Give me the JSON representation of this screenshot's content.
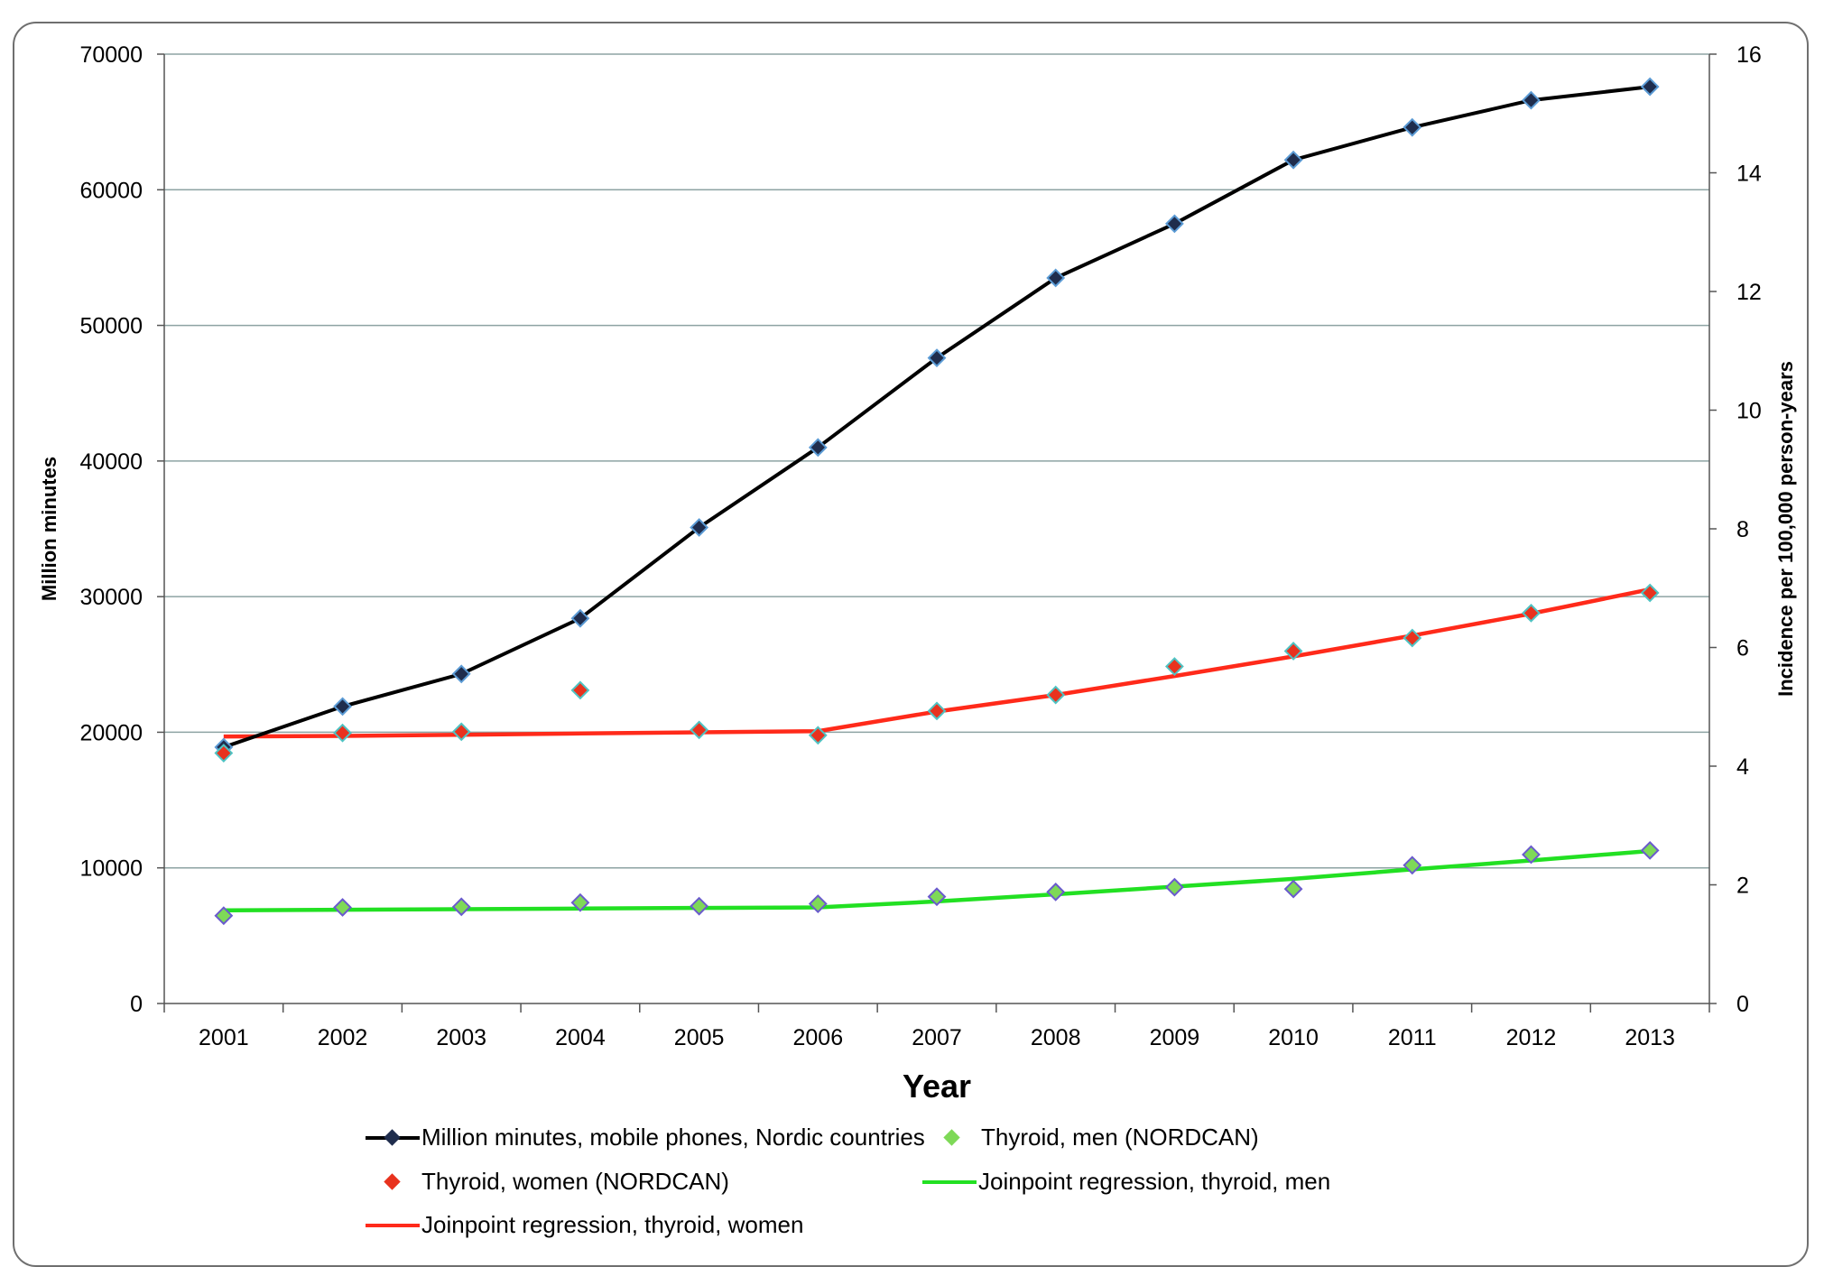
{
  "chart_data": {
    "type": "line",
    "xlabel": "Year",
    "ylabel": "Million minutes",
    "y2label": "Incidence per 100,000 person-years",
    "categories": [
      "2001",
      "2002",
      "2003",
      "2004",
      "2005",
      "2006",
      "2007",
      "2008",
      "2009",
      "2010",
      "2011",
      "2012",
      "2013"
    ],
    "ylim": [
      0,
      70000
    ],
    "y2lim": [
      0,
      16
    ],
    "yticks": [
      "0",
      "10000",
      "20000",
      "30000",
      "40000",
      "50000",
      "60000",
      "70000"
    ],
    "y2ticks": [
      "0",
      "2",
      "4",
      "6",
      "8",
      "10",
      "12",
      "14",
      "16"
    ],
    "grid": true,
    "legend_position": "bottom",
    "series": [
      {
        "name": "Million minutes, mobile phones, Nordic countries",
        "axis": "left",
        "style": "line+marker",
        "color": "#000000",
        "marker_color": "#1f2d4d",
        "values": [
          18900,
          21900,
          24300,
          28400,
          35100,
          41000,
          47600,
          53500,
          57500,
          62200,
          64600,
          66600,
          67600
        ]
      },
      {
        "name": "Thyroid, men (NORDCAN)",
        "axis": "right",
        "style": "marker",
        "color": "#7ed957",
        "values": [
          1.48,
          1.62,
          1.63,
          1.7,
          1.64,
          1.68,
          1.8,
          1.88,
          1.96,
          1.93,
          2.33,
          2.51,
          2.58
        ]
      },
      {
        "name": "Thyroid, women (NORDCAN)",
        "axis": "right",
        "style": "marker",
        "color": "#e8321e",
        "values": [
          4.22,
          4.56,
          4.58,
          5.28,
          4.61,
          4.52,
          4.93,
          5.2,
          5.68,
          5.94,
          6.16,
          6.58,
          6.92
        ]
      },
      {
        "name": "Joinpoint regression, thyroid, men",
        "axis": "right",
        "style": "line",
        "color": "#22e022",
        "values": [
          1.57,
          1.58,
          1.59,
          1.6,
          1.61,
          1.62,
          1.72,
          1.84,
          1.97,
          2.1,
          2.26,
          2.41,
          2.57
        ]
      },
      {
        "name": "Joinpoint regression, thyroid, women",
        "axis": "right",
        "style": "line",
        "color": "#ff2a1a",
        "values": [
          4.5,
          4.51,
          4.53,
          4.55,
          4.57,
          4.59,
          4.92,
          5.2,
          5.52,
          5.85,
          6.2,
          6.57,
          6.98
        ]
      }
    ]
  }
}
